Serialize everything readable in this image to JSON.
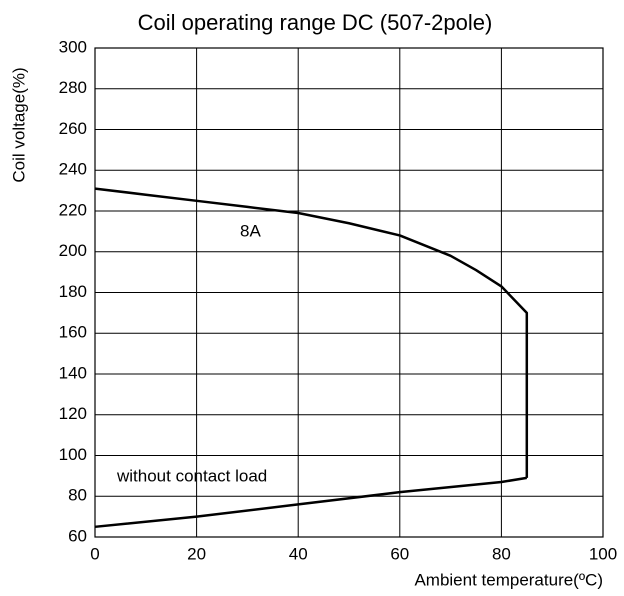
{
  "chart_data": {
    "type": "line",
    "title": "Coil operating range DC (507-2pole)",
    "x_label": "Ambient temperature(ºC)",
    "y_label": "Coil voltage(%)",
    "series": [
      {
        "name": "8A",
        "color": "#000000",
        "x": [
          0,
          10,
          20,
          30,
          40,
          50,
          60,
          70,
          75,
          80,
          85,
          85
        ],
        "values": [
          231,
          228,
          225,
          222,
          219,
          214,
          208,
          198,
          191,
          183,
          170,
          89
        ]
      },
      {
        "name": "without contact load",
        "color": "#000000",
        "x": [
          0,
          20,
          40,
          60,
          80,
          85
        ],
        "values": [
          65,
          70,
          76,
          82,
          87,
          89
        ]
      }
    ],
    "xlim": [
      0,
      100
    ],
    "xticks": [
      0,
      20,
      40,
      60,
      80,
      100
    ],
    "ylim": [
      60,
      300
    ],
    "yticks": [
      60,
      80,
      100,
      120,
      140,
      160,
      180,
      200,
      220,
      240,
      260,
      280,
      300
    ],
    "grid": true
  }
}
